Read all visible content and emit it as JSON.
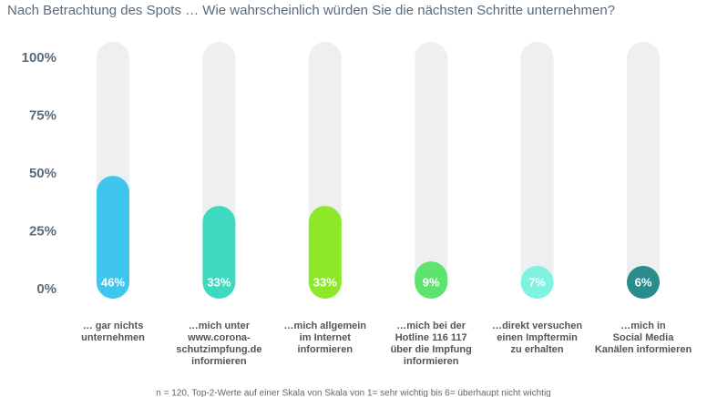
{
  "chart_data": {
    "type": "bar",
    "title": "Nach Betrachtung des Spots … Wie wahrscheinlich würden Sie die nächsten Schritte unternehmen?",
    "categories": [
      "… gar nichts\nunternehmen",
      "…mich unter\nwww.corona-\nschutzimpfung.de\ninformieren",
      "…mich allgemein\nim Internet\ninformieren",
      "…mich bei der\nHotline 116 117\nüber die Impfung\ninformieren",
      "…direkt versuchen\neinen Impftermin\nzu erhalten",
      "…mich in\nSocial Media\nKanälen informieren"
    ],
    "values": [
      46,
      33,
      33,
      9,
      7,
      6
    ],
    "value_labels": [
      "46%",
      "33%",
      "33%",
      "9%",
      "7%",
      "6%"
    ],
    "colors": [
      "#3ec6ef",
      "#3fd9c0",
      "#8ee82a",
      "#5fe36f",
      "#7ff3df",
      "#2a8c8c"
    ],
    "ylim": [
      0,
      100
    ],
    "yticks": [
      {
        "value": 0,
        "label": "0%"
      },
      {
        "value": 25,
        "label": "25%"
      },
      {
        "value": 50,
        "label": "50%"
      },
      {
        "value": 75,
        "label": "75%"
      },
      {
        "value": 100,
        "label": "100%"
      }
    ],
    "footnote": "n = 120, Top-2-Werte auf einer Skala von Skala von 1= sehr wichtig bis 6= überhaupt nicht wichtig"
  }
}
